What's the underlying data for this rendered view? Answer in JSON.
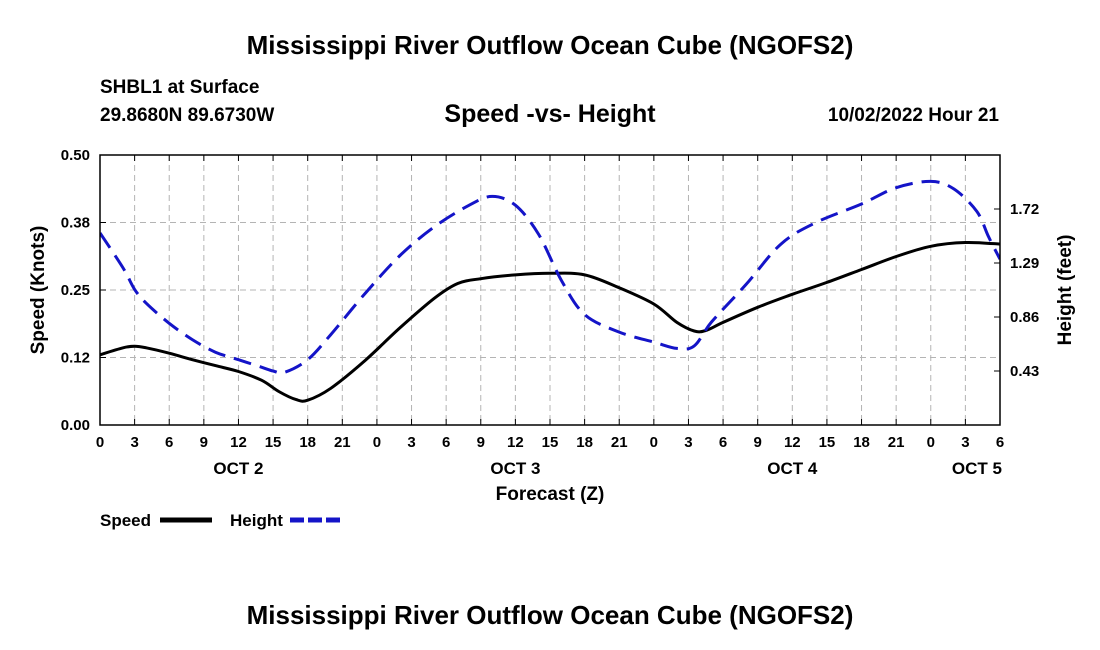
{
  "page": {
    "title": "Mississippi River Outflow Ocean Cube (NGOFS2)",
    "station": "SHBL1 at Surface",
    "coords": "29.8680N  89.6730W",
    "subtitle": "Speed -vs- Height",
    "datetime": "10/02/2022 Hour 21",
    "bottom_title": "Mississippi River Outflow Ocean Cube (NGOFS2)"
  },
  "colors": {
    "speed": "#000000",
    "height": "#1414c8",
    "grid": "#b4b4b4"
  },
  "chart_data": {
    "type": "line",
    "title": "Speed -vs- Height",
    "xlabel": "Forecast (Z)",
    "ylabel": "Speed (Knots)",
    "y2label": "Height (feet)",
    "x_range_hours": [
      0,
      78
    ],
    "x_ticks": [
      {
        "h": 0,
        "label": "0"
      },
      {
        "h": 3,
        "label": "3"
      },
      {
        "h": 6,
        "label": "6"
      },
      {
        "h": 9,
        "label": "9"
      },
      {
        "h": 12,
        "label": "12"
      },
      {
        "h": 15,
        "label": "15"
      },
      {
        "h": 18,
        "label": "18"
      },
      {
        "h": 21,
        "label": "21"
      },
      {
        "h": 24,
        "label": "0"
      },
      {
        "h": 27,
        "label": "3"
      },
      {
        "h": 30,
        "label": "6"
      },
      {
        "h": 33,
        "label": "9"
      },
      {
        "h": 36,
        "label": "12"
      },
      {
        "h": 39,
        "label": "15"
      },
      {
        "h": 42,
        "label": "18"
      },
      {
        "h": 45,
        "label": "21"
      },
      {
        "h": 48,
        "label": "0"
      },
      {
        "h": 51,
        "label": "3"
      },
      {
        "h": 54,
        "label": "6"
      },
      {
        "h": 57,
        "label": "9"
      },
      {
        "h": 60,
        "label": "12"
      },
      {
        "h": 63,
        "label": "15"
      },
      {
        "h": 66,
        "label": "18"
      },
      {
        "h": 69,
        "label": "21"
      },
      {
        "h": 72,
        "label": "0"
      },
      {
        "h": 75,
        "label": "3"
      },
      {
        "h": 78,
        "label": "6"
      }
    ],
    "date_labels": [
      {
        "h": 12,
        "label": "OCT 2"
      },
      {
        "h": 36,
        "label": "OCT 3"
      },
      {
        "h": 60,
        "label": "OCT 4"
      },
      {
        "h": 76,
        "label": "OCT 5"
      }
    ],
    "y_left": {
      "min": 0,
      "max": 0.5,
      "ticks": [
        0,
        0.125,
        0.25,
        0.375,
        0.5
      ],
      "labels": [
        "0.00",
        "0.12",
        "0.25",
        "0.38",
        "0.50"
      ]
    },
    "y_right": {
      "min": 0.0,
      "max": 2.15,
      "ticks": [
        0.43,
        0.86,
        1.29,
        1.72
      ],
      "labels": [
        "0.43",
        "0.86",
        "1.29",
        "1.72"
      ]
    },
    "series": [
      {
        "name": "Speed",
        "axis": "left",
        "style": "solid",
        "points": [
          [
            0,
            0.13
          ],
          [
            2,
            0.143
          ],
          [
            3,
            0.146
          ],
          [
            4,
            0.143
          ],
          [
            6,
            0.133
          ],
          [
            8,
            0.121
          ],
          [
            10,
            0.11
          ],
          [
            12,
            0.099
          ],
          [
            14,
            0.083
          ],
          [
            15.5,
            0.062
          ],
          [
            17,
            0.047
          ],
          [
            18,
            0.046
          ],
          [
            20,
            0.068
          ],
          [
            23,
            0.12
          ],
          [
            26,
            0.18
          ],
          [
            29,
            0.235
          ],
          [
            31,
            0.262
          ],
          [
            33,
            0.271
          ],
          [
            36,
            0.278
          ],
          [
            39,
            0.281
          ],
          [
            42,
            0.278
          ],
          [
            45,
            0.254
          ],
          [
            48,
            0.224
          ],
          [
            50,
            0.19
          ],
          [
            51.5,
            0.174
          ],
          [
            52.5,
            0.175
          ],
          [
            54,
            0.19
          ],
          [
            57,
            0.218
          ],
          [
            60,
            0.242
          ],
          [
            63,
            0.264
          ],
          [
            66,
            0.288
          ],
          [
            69,
            0.312
          ],
          [
            72,
            0.331
          ],
          [
            75,
            0.338
          ],
          [
            78,
            0.335
          ]
        ]
      },
      {
        "name": "Height",
        "axis": "right",
        "style": "dashed",
        "points": [
          [
            0,
            1.53
          ],
          [
            2,
            1.25
          ],
          [
            3,
            1.08
          ],
          [
            4,
            0.97
          ],
          [
            6,
            0.81
          ],
          [
            8,
            0.68
          ],
          [
            10,
            0.58
          ],
          [
            12,
            0.52
          ],
          [
            14,
            0.46
          ],
          [
            15,
            0.43
          ],
          [
            16,
            0.42
          ],
          [
            18,
            0.52
          ],
          [
            20,
            0.72
          ],
          [
            23,
            1.05
          ],
          [
            26,
            1.35
          ],
          [
            29,
            1.58
          ],
          [
            32,
            1.75
          ],
          [
            34,
            1.82
          ],
          [
            36,
            1.75
          ],
          [
            38,
            1.52
          ],
          [
            40,
            1.15
          ],
          [
            42,
            0.88
          ],
          [
            45,
            0.74
          ],
          [
            48,
            0.66
          ],
          [
            50,
            0.61
          ],
          [
            51.5,
            0.63
          ],
          [
            53,
            0.82
          ],
          [
            56,
            1.12
          ],
          [
            59,
            1.44
          ],
          [
            62,
            1.61
          ],
          [
            66,
            1.76
          ],
          [
            69,
            1.89
          ],
          [
            72,
            1.94
          ],
          [
            74,
            1.88
          ],
          [
            76,
            1.7
          ],
          [
            77,
            1.5
          ],
          [
            78,
            1.32
          ]
        ]
      }
    ],
    "legend": [
      {
        "name": "Speed",
        "style": "solid"
      },
      {
        "name": "Height",
        "style": "dashed"
      }
    ]
  }
}
